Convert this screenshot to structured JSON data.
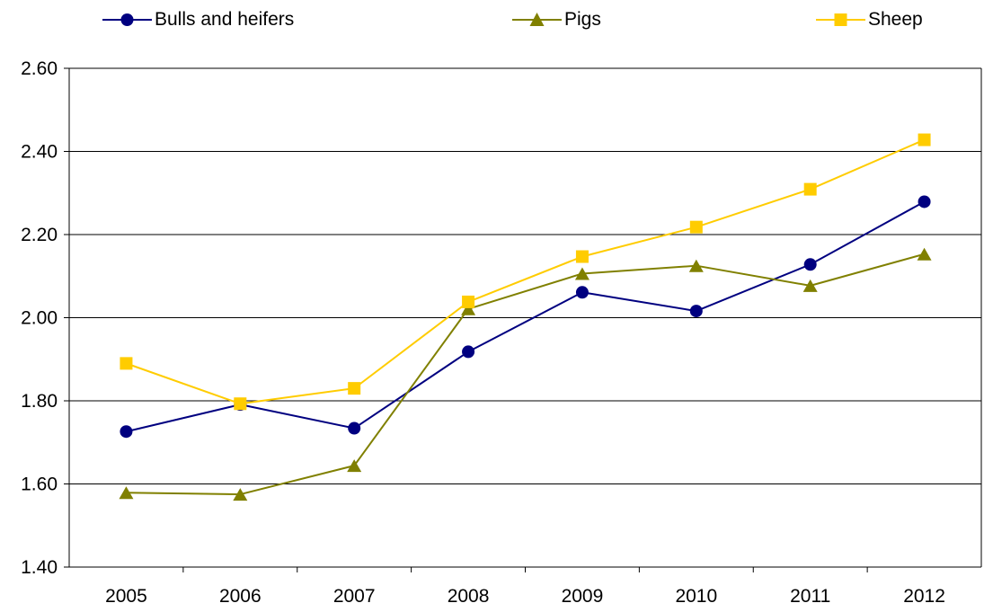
{
  "chart_data": {
    "type": "line",
    "title": "",
    "xlabel": "",
    "ylabel": "",
    "categories": [
      "2005",
      "2006",
      "2007",
      "2008",
      "2009",
      "2010",
      "2011",
      "2012"
    ],
    "ylim": [
      1.4,
      2.6
    ],
    "yticks": [
      "1.40",
      "1.60",
      "1.80",
      "2.00",
      "2.20",
      "2.40",
      "2.60"
    ],
    "grid": true,
    "legend_position": "top",
    "series": [
      {
        "name": "Bulls and heifers",
        "color": "#000080",
        "marker": "circle",
        "values": [
          1.726,
          1.791,
          1.734,
          1.918,
          2.061,
          2.016,
          2.128,
          2.279
        ]
      },
      {
        "name": "Pigs",
        "color": "#808000",
        "marker": "triangle",
        "values": [
          1.579,
          1.575,
          1.644,
          2.021,
          2.106,
          2.125,
          2.077,
          2.153
        ]
      },
      {
        "name": "Sheep",
        "color": "#FFCC00",
        "marker": "square",
        "values": [
          1.89,
          1.793,
          1.83,
          2.038,
          2.147,
          2.218,
          2.309,
          2.428
        ]
      }
    ]
  }
}
